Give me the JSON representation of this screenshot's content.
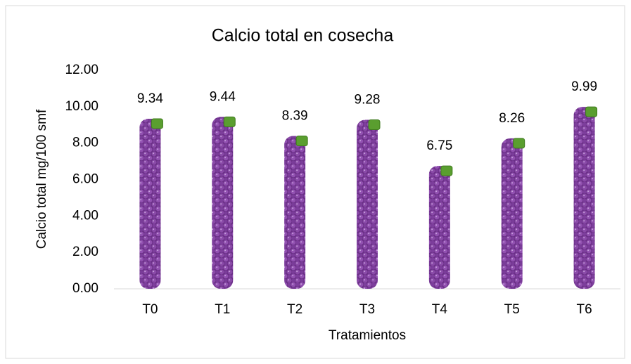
{
  "chart_data": {
    "type": "bar",
    "title": "Calcio total en cosecha",
    "x_label": "Tratamientos",
    "y_label": "Calcio total mg/100 smf",
    "categories": [
      "T0",
      "T1",
      "T2",
      "T3",
      "T4",
      "T5",
      "T6"
    ],
    "values": [
      9.34,
      9.44,
      8.39,
      9.28,
      6.75,
      8.26,
      9.99
    ],
    "color": "#7b3f98",
    "ylim": [
      0,
      12
    ],
    "yticks": [
      {
        "value": 0,
        "label": "0.00"
      },
      {
        "value": 2,
        "label": "2.00"
      },
      {
        "value": 4,
        "label": "4.00"
      },
      {
        "value": 6,
        "label": "6.00"
      },
      {
        "value": 8,
        "label": "8.00"
      },
      {
        "value": 10,
        "label": "10.00"
      },
      {
        "value": 12,
        "label": "12.00"
      }
    ],
    "grid": false
  }
}
